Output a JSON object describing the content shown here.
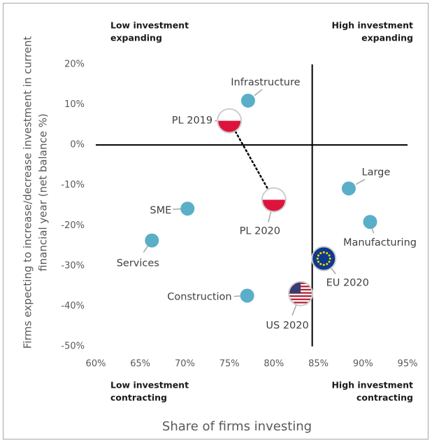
{
  "chart_data": {
    "type": "scatter",
    "x_label": "Share of firms investing",
    "y_label": [
      "Firms expecting to increase/decrease investment in current",
      "financial year  (net balance %)"
    ],
    "quadrants": [
      [
        "Low investment",
        "expanding"
      ],
      [
        "High investment",
        "expanding"
      ],
      [
        "Low investment",
        "contracting"
      ],
      [
        "High investment",
        "contracting"
      ]
    ],
    "xlim": [
      60,
      95
    ],
    "xticks": [
      {
        "value": 60,
        "label": "60%"
      },
      {
        "value": 65,
        "label": "65%"
      },
      {
        "value": 70,
        "label": "70%"
      },
      {
        "value": 75,
        "label": "75%"
      },
      {
        "value": 80,
        "label": "80%"
      },
      {
        "value": 85,
        "label": "85%"
      },
      {
        "value": 90,
        "label": "90%"
      },
      {
        "value": 95,
        "label": "95%"
      }
    ],
    "ylim": [
      -50,
      20
    ],
    "yticks": [
      {
        "value": 20,
        "label": "20%"
      },
      {
        "value": 10,
        "label": "10%"
      },
      {
        "value": 0,
        "label": "0%"
      },
      {
        "value": -10,
        "label": "-10%"
      },
      {
        "value": -20,
        "label": "-20%"
      },
      {
        "value": -30,
        "label": "-30%"
      },
      {
        "value": -40,
        "label": "-40%"
      },
      {
        "value": -50,
        "label": "-50%"
      }
    ],
    "quadrant_split_x": 84.3,
    "quadrant_split_y": 0,
    "points": [
      {
        "name": "Infrastructure",
        "x": 77.1,
        "y": 11,
        "color": "#5aaec8"
      },
      {
        "name": "PL 2019",
        "x": 75.0,
        "y": 6,
        "marker": "pl"
      },
      {
        "name": "PL 2020",
        "x": 80.0,
        "y": -13.6,
        "marker": "pl"
      },
      {
        "name": "Large",
        "x": 88.4,
        "y": -10.8,
        "color": "#5aaec8"
      },
      {
        "name": "Manufacturing",
        "x": 90.8,
        "y": -19.1,
        "color": "#5aaec8"
      },
      {
        "name": "SME",
        "x": 70.3,
        "y": -15.8,
        "color": "#5aaec8"
      },
      {
        "name": "Services",
        "x": 66.3,
        "y": -23.7,
        "color": "#5aaec8"
      },
      {
        "name": "EU 2020",
        "x": 85.6,
        "y": -28.2,
        "marker": "eu"
      },
      {
        "name": "Construction",
        "x": 77.0,
        "y": -37.4,
        "color": "#5aaec8"
      },
      {
        "name": "US 2020",
        "x": 83.0,
        "y": -36.9,
        "marker": "us"
      }
    ]
  }
}
